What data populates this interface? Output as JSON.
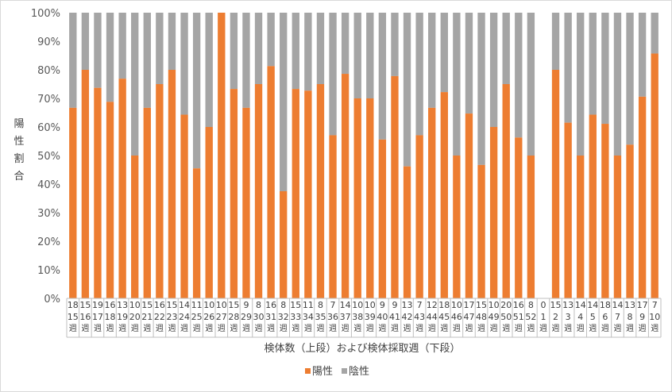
{
  "chart_data": {
    "type": "bar",
    "stacked": true,
    "percent": true,
    "ylim": [
      0,
      100
    ],
    "yticks": [
      "0%",
      "10%",
      "20%",
      "30%",
      "40%",
      "50%",
      "60%",
      "70%",
      "80%",
      "90%",
      "100%"
    ],
    "ylabel": "陽性割合",
    "xlabel": "検体数（上段）および検体採取週（下段）",
    "week_suffix": "週",
    "grid": false,
    "legend_position": "bottom",
    "series": [
      {
        "name": "陽性",
        "color": "#ed7d31"
      },
      {
        "name": "陰性",
        "color": "#a5a5a5"
      }
    ],
    "categories": [
      {
        "count": "18",
        "week": "15",
        "positive": 66.7
      },
      {
        "count": "15",
        "week": "16",
        "positive": 80.0
      },
      {
        "count": "19",
        "week": "17",
        "positive": 73.7
      },
      {
        "count": "16",
        "week": "18",
        "positive": 68.8
      },
      {
        "count": "13",
        "week": "19",
        "positive": 76.9
      },
      {
        "count": "10",
        "week": "20",
        "positive": 50.0
      },
      {
        "count": "15",
        "week": "21",
        "positive": 66.7
      },
      {
        "count": "16",
        "week": "22",
        "positive": 75.0
      },
      {
        "count": "15",
        "week": "23",
        "positive": 80.0
      },
      {
        "count": "14",
        "week": "24",
        "positive": 64.3
      },
      {
        "count": "11",
        "week": "25",
        "positive": 45.5
      },
      {
        "count": "10",
        "week": "26",
        "positive": 60.0
      },
      {
        "count": "10",
        "week": "27",
        "positive": 100.0
      },
      {
        "count": "15",
        "week": "28",
        "positive": 73.3
      },
      {
        "count": "9",
        "week": "29",
        "positive": 66.7
      },
      {
        "count": "8",
        "week": "30",
        "positive": 75.0
      },
      {
        "count": "16",
        "week": "31",
        "positive": 81.3
      },
      {
        "count": "8",
        "week": "32",
        "positive": 37.5
      },
      {
        "count": "15",
        "week": "33",
        "positive": 73.3
      },
      {
        "count": "11",
        "week": "34",
        "positive": 72.7
      },
      {
        "count": "8",
        "week": "35",
        "positive": 75.0
      },
      {
        "count": "7",
        "week": "36",
        "positive": 57.1
      },
      {
        "count": "14",
        "week": "37",
        "positive": 78.6
      },
      {
        "count": "10",
        "week": "38",
        "positive": 70.0
      },
      {
        "count": "10",
        "week": "39",
        "positive": 70.0
      },
      {
        "count": "9",
        "week": "40",
        "positive": 55.6
      },
      {
        "count": "9",
        "week": "41",
        "positive": 77.8
      },
      {
        "count": "13",
        "week": "42",
        "positive": 46.2
      },
      {
        "count": "7",
        "week": "43",
        "positive": 57.1
      },
      {
        "count": "12",
        "week": "44",
        "positive": 66.7
      },
      {
        "count": "18",
        "week": "45",
        "positive": 72.2
      },
      {
        "count": "10",
        "week": "46",
        "positive": 50.0
      },
      {
        "count": "17",
        "week": "47",
        "positive": 64.7
      },
      {
        "count": "15",
        "week": "48",
        "positive": 46.7
      },
      {
        "count": "10",
        "week": "49",
        "positive": 60.0
      },
      {
        "count": "20",
        "week": "50",
        "positive": 75.0
      },
      {
        "count": "16",
        "week": "51",
        "positive": 56.3
      },
      {
        "count": "8",
        "week": "52",
        "positive": 50.0
      },
      {
        "count": "0",
        "week": "1",
        "positive": 0
      },
      {
        "count": "15",
        "week": "2",
        "positive": 80.0
      },
      {
        "count": "13",
        "week": "3",
        "positive": 61.5
      },
      {
        "count": "14",
        "week": "4",
        "positive": 50.0
      },
      {
        "count": "14",
        "week": "5",
        "positive": 64.3
      },
      {
        "count": "18",
        "week": "6",
        "positive": 61.1
      },
      {
        "count": "14",
        "week": "7",
        "positive": 50.0
      },
      {
        "count": "13",
        "week": "8",
        "positive": 53.8
      },
      {
        "count": "17",
        "week": "9",
        "positive": 70.6
      },
      {
        "count": "7",
        "week": "10",
        "positive": 85.7
      }
    ]
  }
}
